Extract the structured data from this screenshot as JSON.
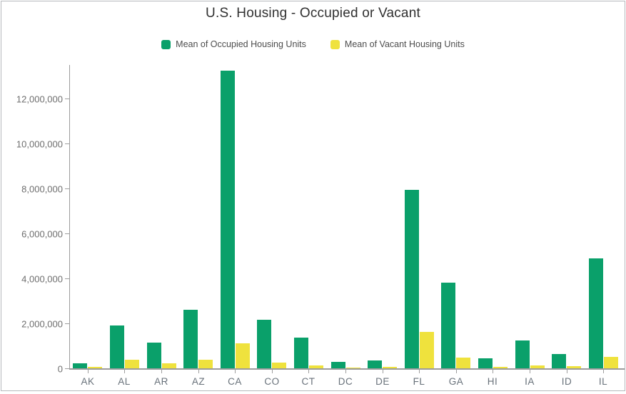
{
  "chart_data": {
    "type": "bar",
    "title": "U.S. Housing - Occupied or Vacant",
    "categories": [
      "AK",
      "AL",
      "AR",
      "AZ",
      "CA",
      "CO",
      "CT",
      "DC",
      "DE",
      "FL",
      "GA",
      "HI",
      "IA",
      "ID",
      "IL"
    ],
    "series": [
      {
        "name": "Mean of Occupied Housing Units",
        "color": "#0aa06a",
        "values": [
          230000,
          1900000,
          1150000,
          2600000,
          13250000,
          2150000,
          1380000,
          270000,
          360000,
          7950000,
          3800000,
          460000,
          1250000,
          620000,
          4900000
        ]
      },
      {
        "name": "Mean of Vacant Housing Units",
        "color": "#efe23d",
        "values": [
          50000,
          380000,
          220000,
          390000,
          1100000,
          240000,
          140000,
          30000,
          60000,
          1620000,
          480000,
          70000,
          140000,
          100000,
          500000
        ]
      }
    ],
    "xlabel": "",
    "ylabel": "",
    "ylim": [
      0,
      13500000
    ],
    "y_axis": {
      "tick_values": [
        0,
        2000000,
        4000000,
        6000000,
        8000000,
        10000000,
        12000000
      ],
      "tick_labels": [
        "0",
        "2,000,000",
        "4,000,000",
        "6,000,000",
        "8,000,000",
        "10,000,000",
        "12,000,000"
      ]
    },
    "grid": false,
    "legend_position": "top"
  },
  "colors": {
    "frame_border": "#b6babd",
    "axis_line": "#9c9c9c",
    "axis_text": "#6e6e6e",
    "x_axis_text": "#68717a",
    "title_text": "#303030",
    "legend_text": "#4d4d4d",
    "background": "#ffffff"
  }
}
